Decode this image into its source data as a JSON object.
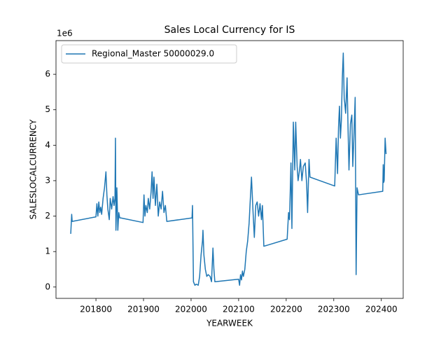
{
  "chart_data": {
    "type": "line",
    "title": "Sales Local Currency for IS",
    "x_label": "YEARWEEK",
    "y_label": "SALESLOCALCURRENCY",
    "y_offset_label": "1e6",
    "x": [
      201747,
      201749,
      201750,
      201800,
      201802,
      201804,
      201806,
      201808,
      201810,
      201812,
      201815,
      201818,
      201820,
      201821,
      201823,
      201825,
      201828,
      201830,
      201833,
      201836,
      201838,
      201840,
      201841,
      201842,
      201844,
      201846,
      201848,
      201850,
      201852,
      201899,
      201901,
      201903,
      201905,
      201908,
      201910,
      201913,
      201916,
      201918,
      201920,
      201922,
      201925,
      201928,
      201931,
      201934,
      201937,
      201940,
      201943,
      201946,
      201949,
      202002,
      202003,
      202005,
      202008,
      202011,
      202015,
      202018,
      202021,
      202024,
      202025,
      202027,
      202030,
      202033,
      202036,
      202040,
      202043,
      202046,
      202048,
      202050,
      202100,
      202102,
      202104,
      202106,
      202108,
      202110,
      202113,
      202116,
      202119,
      202122,
      202125,
      202127,
      202130,
      202133,
      202136,
      202139,
      202142,
      202145,
      202148,
      202150,
      202153,
      202202,
      202205,
      202207,
      202210,
      202212,
      202215,
      202218,
      202220,
      202223,
      202225,
      202228,
      202230,
      202233,
      202236,
      202240,
      202243,
      202245,
      202248,
      202250,
      202302,
      202305,
      202308,
      202310,
      202312,
      202314,
      202316,
      202318,
      202320,
      202322,
      202323,
      202325,
      202328,
      202330,
      202332,
      202335,
      202338,
      202340,
      202342,
      202345,
      202347,
      202349,
      202352,
      202403,
      202404,
      202405,
      202406,
      202408,
      202410
    ],
    "series": [
      {
        "name": "Regional_Master 50000029.0",
        "color": "#1f77b4",
        "values": [
          1.5,
          2.05,
          1.85,
          1.98,
          2.35,
          2.0,
          2.4,
          2.1,
          2.25,
          2.05,
          2.5,
          2.8,
          3.1,
          3.25,
          2.6,
          2.2,
          1.9,
          2.5,
          2.2,
          2.55,
          2.3,
          2.5,
          4.2,
          1.6,
          2.8,
          1.6,
          2.1,
          1.95,
          1.95,
          1.82,
          2.6,
          2.0,
          2.3,
          2.1,
          2.5,
          2.2,
          2.7,
          3.25,
          2.5,
          3.1,
          2.3,
          2.9,
          2.0,
          2.4,
          2.2,
          2.7,
          2.1,
          2.3,
          1.85,
          1.95,
          2.3,
          0.15,
          0.05,
          0.08,
          0.05,
          0.3,
          0.9,
          1.3,
          1.6,
          0.9,
          0.5,
          0.3,
          0.35,
          0.3,
          0.15,
          1.1,
          0.5,
          0.15,
          0.22,
          0.05,
          0.35,
          0.2,
          0.45,
          0.3,
          0.5,
          1.0,
          1.3,
          1.8,
          2.6,
          3.1,
          2.2,
          1.4,
          2.3,
          2.4,
          2.0,
          2.35,
          1.9,
          2.3,
          1.15,
          1.35,
          2.1,
          1.9,
          3.5,
          1.65,
          4.65,
          3.3,
          4.65,
          3.4,
          3.0,
          3.3,
          3.6,
          3.0,
          3.4,
          3.5,
          2.9,
          2.1,
          3.6,
          3.1,
          2.85,
          4.2,
          3.2,
          4.5,
          5.1,
          4.2,
          4.7,
          5.9,
          6.6,
          5.3,
          5.2,
          4.9,
          5.9,
          4.5,
          3.3,
          4.6,
          4.85,
          3.4,
          4.1,
          5.35,
          0.35,
          2.8,
          2.6,
          2.7,
          3.45,
          2.95,
          3.0,
          4.2,
          3.75
        ]
      }
    ],
    "xlim": [
      201716,
      202446
    ],
    "ylim": [
      -0.32,
      6.95
    ],
    "xticks": [
      201800,
      201900,
      202000,
      202100,
      202200,
      202300,
      202400
    ],
    "yticks": [
      0,
      1,
      2,
      3,
      4,
      5,
      6
    ],
    "legend": "upper left"
  }
}
